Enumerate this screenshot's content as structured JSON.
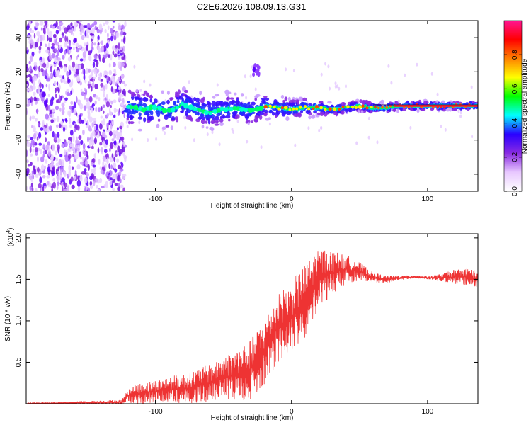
{
  "title": "C2E6.2026.108.09.13.G31",
  "chart_data": [
    {
      "type": "heatmap",
      "xlabel": "Height of straight line (km)",
      "ylabel": "Frequency (Hz)",
      "xlim": [
        -195,
        137
      ],
      "ylim": [
        -50,
        50
      ],
      "xticks": [
        -100,
        0,
        100
      ],
      "yticks": [
        -40,
        -20,
        0,
        20,
        40
      ],
      "colorbar": {
        "label": "Normalized spectral amplitude",
        "range": [
          0,
          1
        ],
        "ticks": [
          "0.0",
          "0.2",
          "0.4",
          "0.6",
          "0.8"
        ],
        "stops": [
          "#ffffff",
          "#e8c8ff",
          "#8a2be2",
          "#2a00ff",
          "#00ffff",
          "#00ff00",
          "#ffff00",
          "#ff8000",
          "#ff0000",
          "#ff1493"
        ]
      },
      "trace": {
        "x": [
          -122,
          -110,
          -100,
          -90,
          -80,
          -70,
          -60,
          -50,
          -40,
          -30,
          -20,
          -10,
          0,
          10,
          20,
          30,
          40,
          50,
          60,
          70,
          80,
          90,
          100,
          110,
          120,
          137
        ],
        "y": [
          0,
          -2,
          -1,
          -3,
          1,
          -2,
          -4,
          -2,
          -1,
          -3,
          0,
          -1,
          -2,
          -1,
          -1,
          -2,
          -1,
          0,
          -1,
          -1,
          0,
          0,
          0,
          0,
          0,
          0
        ]
      },
      "noise_region": [
        -195,
        -122
      ],
      "artifact": {
        "x": -26,
        "y": 21
      }
    },
    {
      "type": "line",
      "xlabel": "Height of straight line (km)",
      "ylabel": "SNR (10 * v/v)",
      "yscale_label": "(x10",
      "yscale_exp": "4",
      "scale_close": ")",
      "xlim": [
        -195,
        137
      ],
      "ylim": [
        0,
        2.05
      ],
      "xticks": [
        -100,
        0,
        100
      ],
      "yticks": [
        0.5,
        1.0,
        1.5,
        2.0
      ],
      "ytick_labels": [
        "0.5",
        "1.0",
        "1.5",
        "2.0"
      ],
      "color": "#ee3333",
      "series": [
        {
          "name": "SNR",
          "x": [
            -195,
            -125,
            -120,
            -110,
            -100,
            -90,
            -80,
            -70,
            -60,
            -50,
            -40,
            -30,
            -20,
            -10,
            0,
            10,
            20,
            30,
            40,
            50,
            60,
            70,
            80,
            90,
            100,
            110,
            120,
            130,
            137
          ],
          "y": [
            0.0,
            0.02,
            0.1,
            0.12,
            0.15,
            0.17,
            0.18,
            0.21,
            0.25,
            0.31,
            0.35,
            0.41,
            0.62,
            0.91,
            1.04,
            1.23,
            1.52,
            1.58,
            1.62,
            1.6,
            1.52,
            1.5,
            1.52,
            1.53,
            1.52,
            1.52,
            1.53,
            1.53,
            1.5
          ],
          "spread": [
            0.01,
            0.03,
            0.1,
            0.15,
            0.15,
            0.18,
            0.2,
            0.23,
            0.25,
            0.3,
            0.35,
            0.4,
            0.45,
            0.45,
            0.5,
            0.5,
            0.4,
            0.3,
            0.2,
            0.12,
            0.07,
            0.05,
            0.03,
            0.02,
            0.02,
            0.05,
            0.1,
            0.12,
            0.12
          ]
        }
      ]
    }
  ]
}
